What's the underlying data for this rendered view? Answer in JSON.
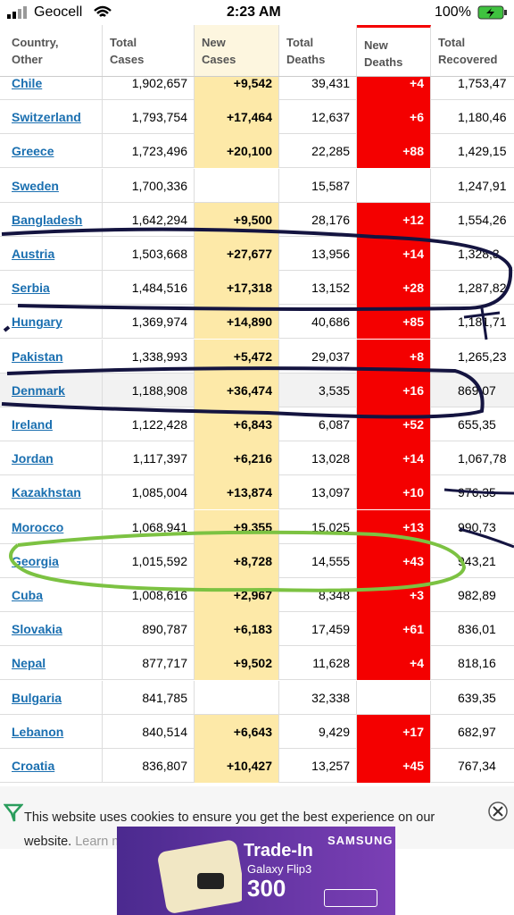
{
  "status_bar": {
    "carrier": "Geocell",
    "time": "2:23 AM",
    "battery": "100%"
  },
  "table": {
    "headers": [
      "Country, Other",
      "Total Cases",
      "New Cases",
      "Total Deaths",
      "New Deaths",
      "Total Recovered"
    ],
    "rows": [
      [
        "Chile",
        "1,902,657",
        "+9,542",
        "39,431",
        "+4",
        "1,753,47"
      ],
      [
        "Switzerland",
        "1,793,754",
        "+17,464",
        "12,637",
        "+6",
        "1,180,46"
      ],
      [
        "Greece",
        "1,723,496",
        "+20,100",
        "22,285",
        "+88",
        "1,429,15"
      ],
      [
        "Sweden",
        "1,700,336",
        null,
        "15,587",
        null,
        "1,247,91"
      ],
      [
        "Bangladesh",
        "1,642,294",
        "+9,500",
        "28,176",
        "+12",
        "1,554,26"
      ],
      [
        "Austria",
        "1,503,668",
        "+27,677",
        "13,956",
        "+14",
        "1,328,3"
      ],
      [
        "Serbia",
        "1,484,516",
        "+17,318",
        "13,152",
        "+28",
        "1,287,82"
      ],
      [
        "Hungary",
        "1,369,974",
        "+14,890",
        "40,686",
        "+85",
        "1,181,71"
      ],
      [
        "Pakistan",
        "1,338,993",
        "+5,472",
        "29,037",
        "+8",
        "1,265,23"
      ],
      [
        "Denmark",
        "1,188,908",
        "+36,474",
        "3,535",
        "+16",
        "869,07"
      ],
      [
        "Ireland",
        "1,122,428",
        "+6,843",
        "6,087",
        "+52",
        "655,35"
      ],
      [
        "Jordan",
        "1,117,397",
        "+6,216",
        "13,028",
        "+14",
        "1,067,78"
      ],
      [
        "Kazakhstan",
        "1,085,004",
        "+13,874",
        "13,097",
        "+10",
        "976,35"
      ],
      [
        "Morocco",
        "1,068,941",
        "+9,355",
        "15,025",
        "+13",
        "990,73"
      ],
      [
        "Georgia",
        "1,015,592",
        "+8,728",
        "14,555",
        "+43",
        "943,21"
      ],
      [
        "Cuba",
        "1,008,616",
        "+2,967",
        "8,348",
        "+3",
        "982,89"
      ],
      [
        "Slovakia",
        "890,787",
        "+6,183",
        "17,459",
        "+61",
        "836,01"
      ],
      [
        "Nepal",
        "877,717",
        "+9,502",
        "11,628",
        "+4",
        "818,16"
      ],
      [
        "Bulgaria",
        "841,785",
        null,
        "32,338",
        null,
        "639,35"
      ],
      [
        "Lebanon",
        "840,514",
        "+6,643",
        "9,429",
        "+17",
        "682,97"
      ],
      [
        "Croatia",
        "836,807",
        "+10,427",
        "13,257",
        "+45",
        "767,34"
      ]
    ]
  },
  "cookie_banner": {
    "text": "This website uses cookies to ensure you get the best experience on our website.",
    "link": "Learn more"
  },
  "ad": {
    "headline": "Trade-In",
    "product": "Galaxy Flip3",
    "amount": "300",
    "brand": "SAMSUNG"
  }
}
